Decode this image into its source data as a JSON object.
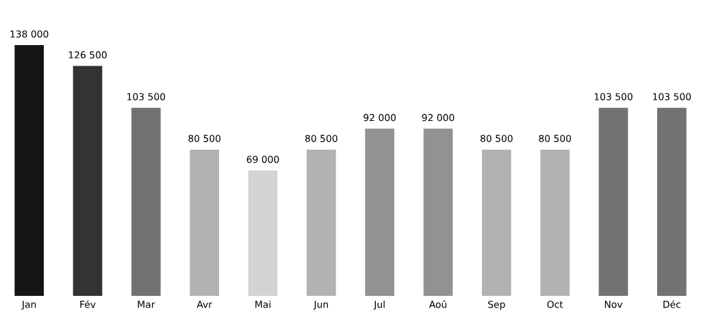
{
  "chart_data": {
    "type": "bar",
    "categories": [
      "Jan",
      "Fév",
      "Mar",
      "Avr",
      "Mai",
      "Jun",
      "Jul",
      "Aoû",
      "Sep",
      "Oct",
      "Nov",
      "Déc"
    ],
    "values": [
      138000,
      126500,
      103500,
      80500,
      69000,
      80500,
      92000,
      92000,
      80500,
      80500,
      103500,
      103500
    ],
    "value_labels": [
      "138 000",
      "126 500",
      "103 500",
      "80 500",
      "69 000",
      "80 500",
      "92 000",
      "92 000",
      "80 500",
      "80 500",
      "103 500",
      "103 500"
    ],
    "colors": [
      "#151515",
      "#333333",
      "#727272",
      "#b2b2b2",
      "#d3d3d3",
      "#b2b2b2",
      "#929292",
      "#929292",
      "#b2b2b2",
      "#b2b2b2",
      "#727272",
      "#727272"
    ],
    "grid": false
  }
}
